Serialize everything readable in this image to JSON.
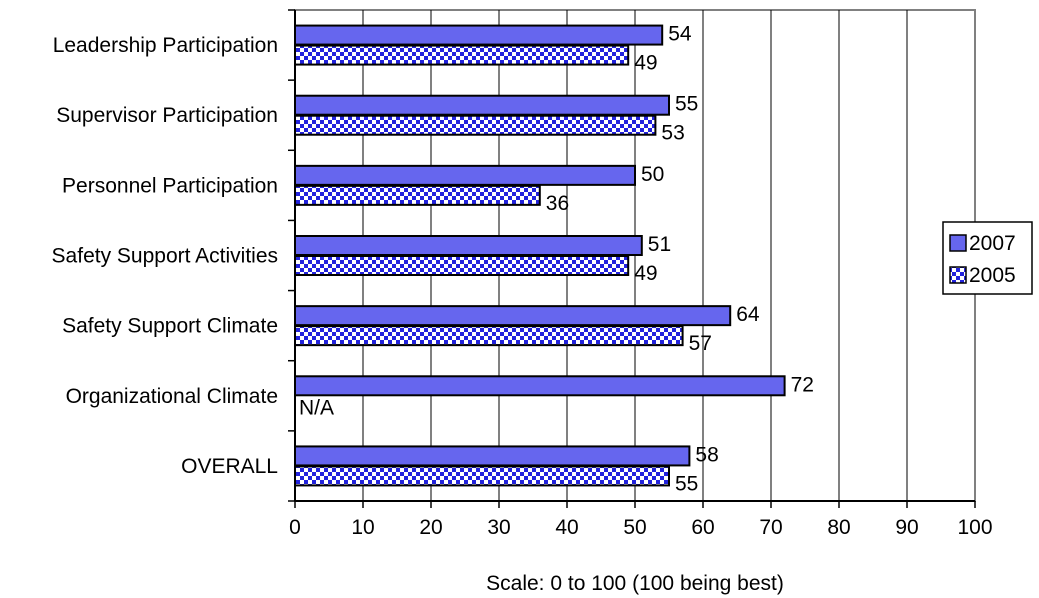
{
  "chart_data": {
    "type": "bar",
    "orientation": "horizontal",
    "categories": [
      "Leadership Participation",
      "Supervisor Participation",
      "Personnel Participation",
      "Safety Support Activities",
      "Safety Support Climate",
      "Organizational Climate",
      "OVERALL"
    ],
    "series": [
      {
        "name": "2007",
        "values": [
          54,
          55,
          50,
          51,
          64,
          72,
          58
        ],
        "color": "#6666ee",
        "pattern": "solid"
      },
      {
        "name": "2005",
        "values": [
          49,
          53,
          36,
          49,
          57,
          null,
          55
        ],
        "color": "#2222dd",
        "pattern": "checker"
      }
    ],
    "missing_label": "N/A",
    "xlabel": "Scale: 0 to 100 (100 being best)",
    "xlim": [
      0,
      100
    ],
    "xticks": [
      0,
      10,
      20,
      30,
      40,
      50,
      60,
      70,
      80,
      90,
      100
    ],
    "grid": true,
    "legend_position": "right"
  }
}
